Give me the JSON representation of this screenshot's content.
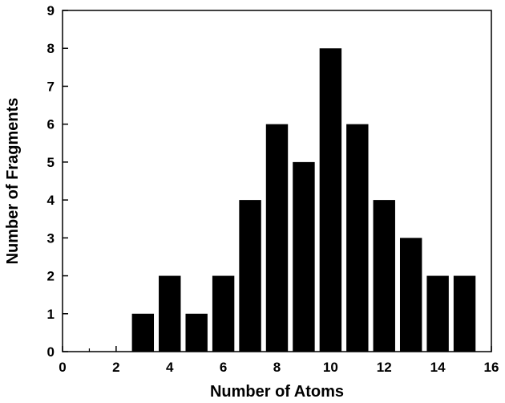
{
  "chart_data": {
    "type": "bar",
    "title": "",
    "xlabel": "Number of Atoms",
    "ylabel": "Number of Fragments",
    "xlim": [
      0,
      16
    ],
    "ylim": [
      0,
      9
    ],
    "x_ticks": [
      "0",
      "2",
      "4",
      "6",
      "8",
      "10",
      "12",
      "14",
      "16"
    ],
    "y_ticks": [
      "0",
      "1",
      "2",
      "3",
      "4",
      "5",
      "6",
      "7",
      "8",
      "9"
    ],
    "grid": false,
    "legend": "none",
    "bar_color": "#000000",
    "x": [
      3,
      4,
      5,
      6,
      7,
      8,
      9,
      10,
      11,
      12,
      13,
      14,
      15
    ],
    "values": [
      1,
      2,
      1,
      2,
      4,
      6,
      5,
      8,
      6,
      4,
      3,
      2,
      2
    ]
  }
}
